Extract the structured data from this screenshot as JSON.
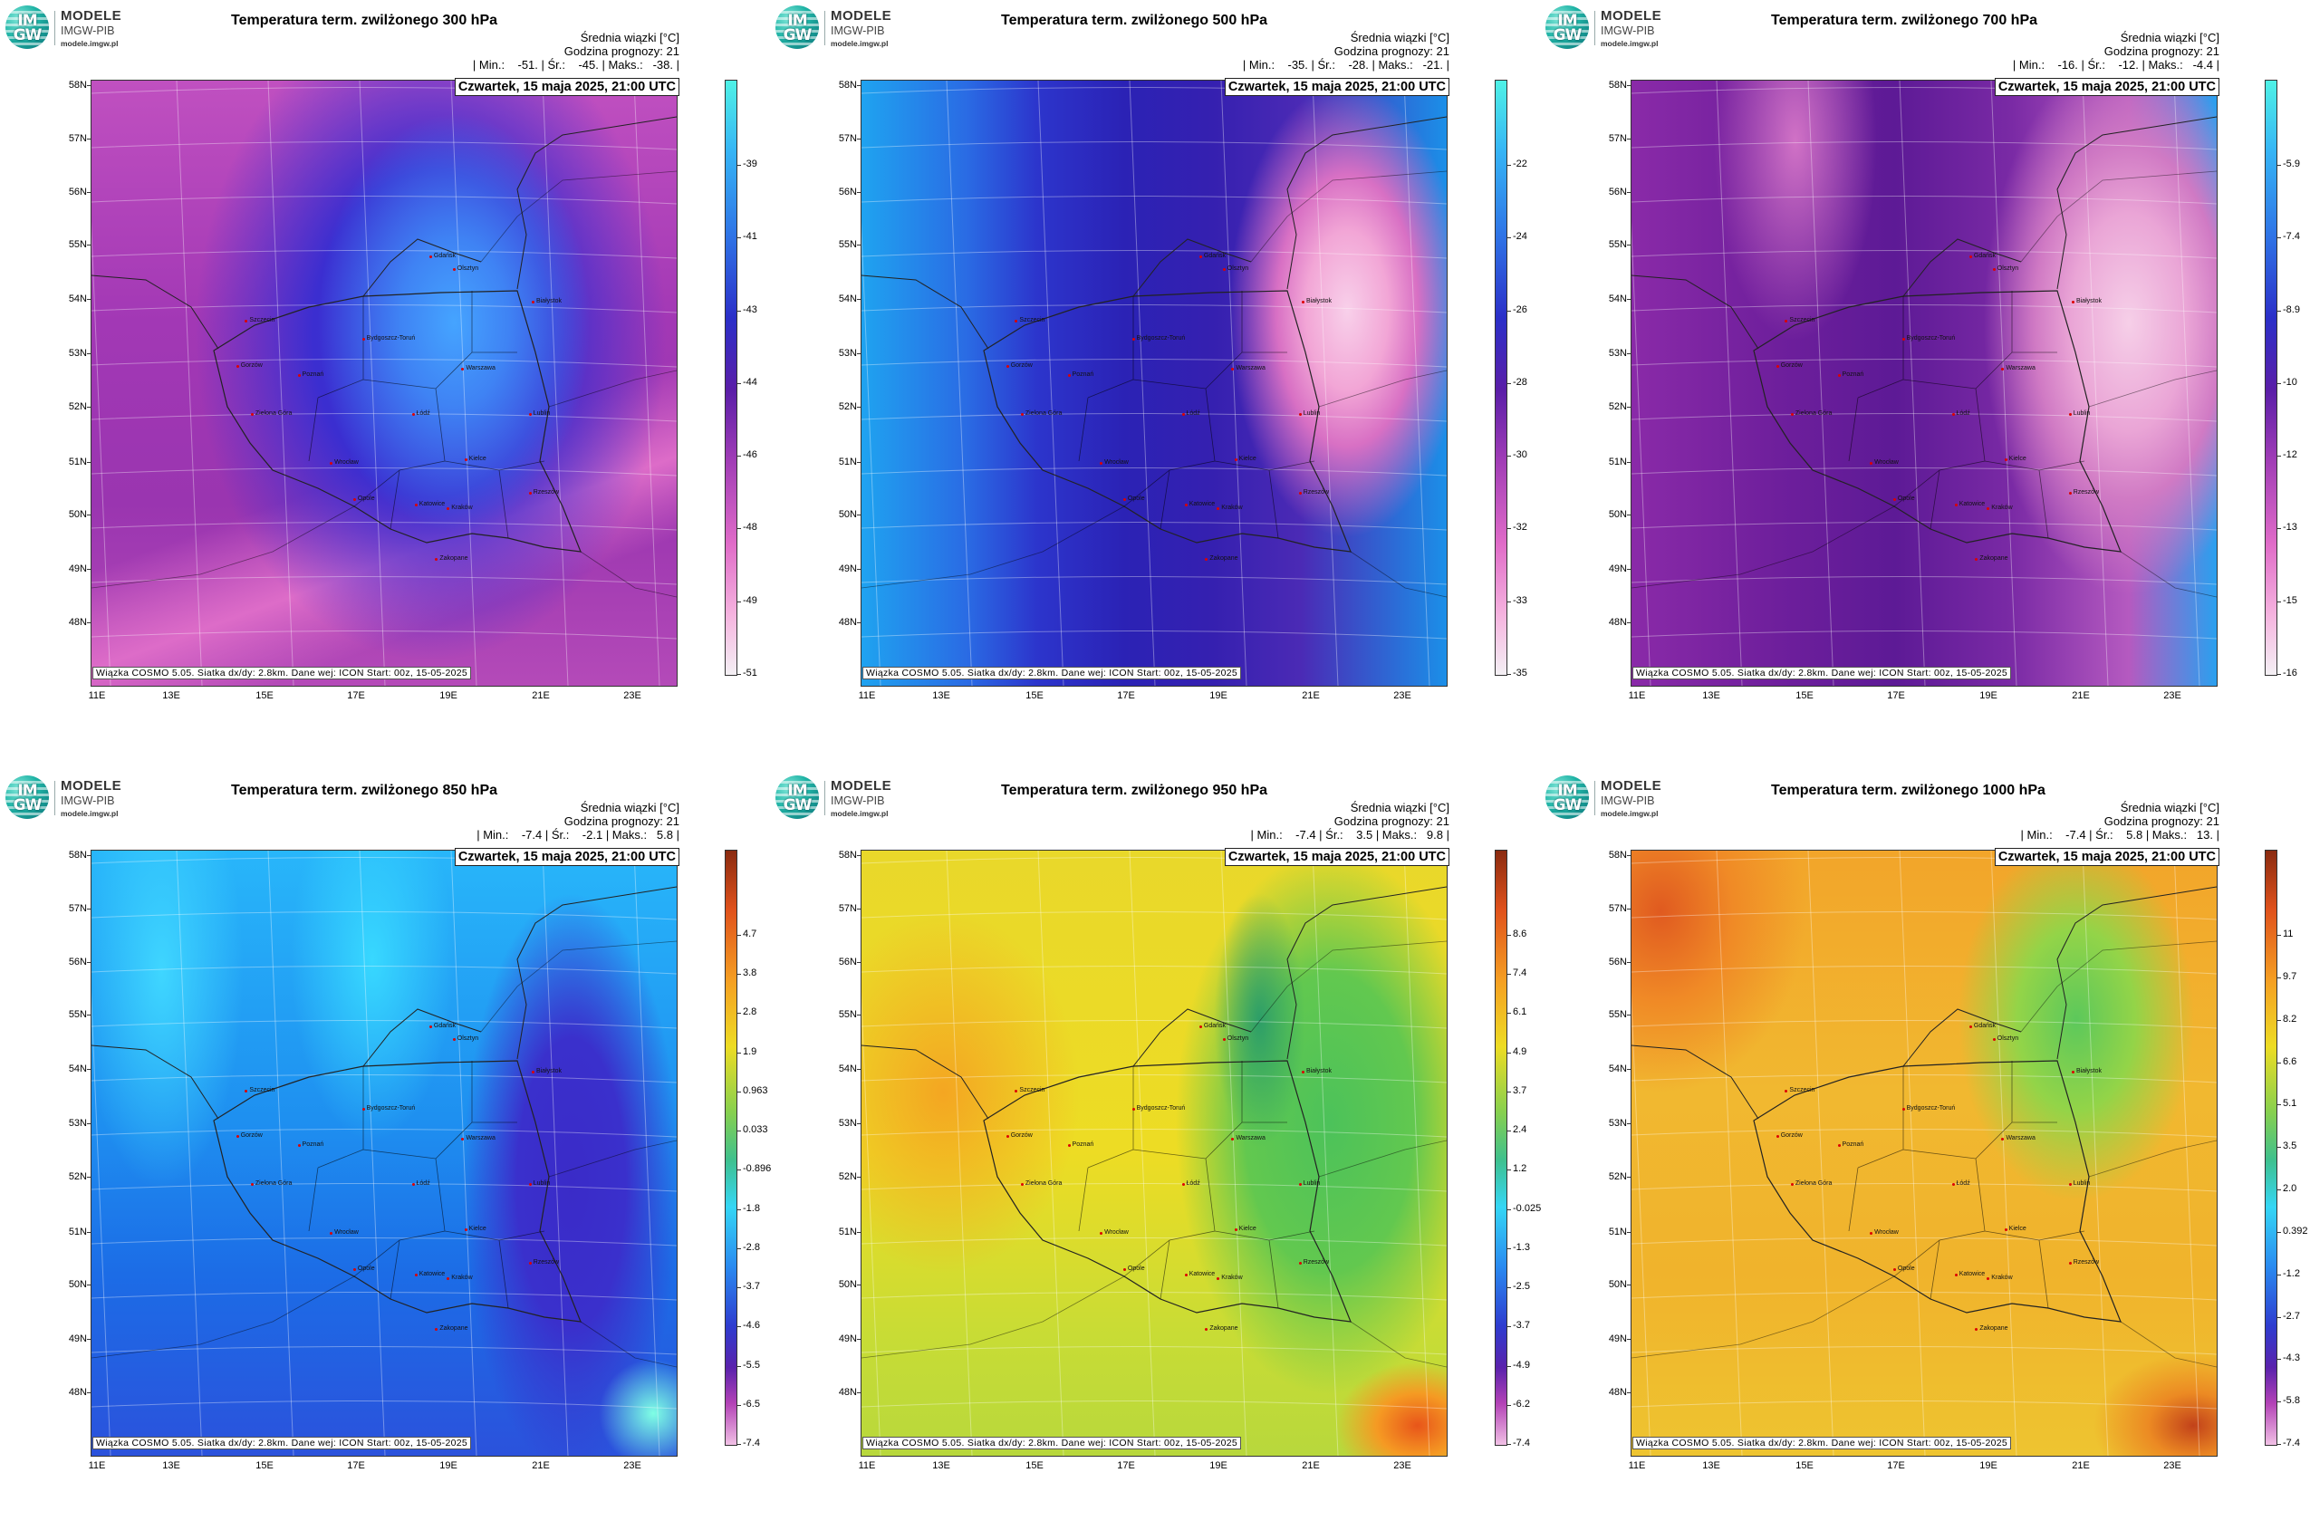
{
  "logo": {
    "line1": "MODELE",
    "line2": "IMGW-PIB",
    "line3": "modele.imgw.pl",
    "badge_top": "IM",
    "badge_bottom": "GW"
  },
  "common": {
    "stat_header": "Średnia wiązki [°C]",
    "forecast_hour": "Godzina prognozy: 21",
    "date": "Czwartek, 15 maja 2025, 21:00 UTC",
    "footer": "Wiązka COSMO 5.05. Siatka dx/dy: 2.8km. Dane wej: ICON Start: 00z, 15-05-2025",
    "lat_labels": [
      "58N",
      "57N",
      "56N",
      "55N",
      "54N",
      "53N",
      "52N",
      "51N",
      "50N",
      "49N",
      "48N"
    ],
    "lon_labels": [
      "11E",
      "13E",
      "15E",
      "17E",
      "19E",
      "21E",
      "23E"
    ]
  },
  "cities": [
    "Gdańsk",
    "Olsztyn",
    "Szczecin",
    "Bydgoszcz-Toruń",
    "Białystok",
    "Gorzów",
    "Poznań",
    "Warszawa",
    "Zielona Góra",
    "Łódź",
    "Lublin",
    "Wrocław",
    "Opole",
    "Kielce",
    "Katowice",
    "Kraków",
    "Rzeszów",
    "Zakopane"
  ],
  "panels": [
    {
      "title": "Temperatura term. zwilżonego 300 hPa",
      "min": "-51.",
      "avg": "-45.",
      "max": "-38.",
      "colorbar": [
        "-39",
        "-41",
        "-43",
        "-44",
        "-46",
        "-48",
        "-49",
        "-51"
      ],
      "cb_scheme": "cold1",
      "chart_data": {
        "type": "heatmap",
        "variable": "wet-bulb temperature",
        "level_hPa": 300,
        "unit": "°C",
        "min": -51,
        "mean": -45,
        "max": -38
      }
    },
    {
      "title": "Temperatura term. zwilżonego 500 hPa",
      "min": "-35.",
      "avg": "-28.",
      "max": "-21.",
      "colorbar": [
        "-22",
        "-24",
        "-26",
        "-28",
        "-30",
        "-32",
        "-33",
        "-35"
      ],
      "cb_scheme": "cold1",
      "chart_data": {
        "type": "heatmap",
        "variable": "wet-bulb temperature",
        "level_hPa": 500,
        "unit": "°C",
        "min": -35,
        "mean": -28,
        "max": -21
      }
    },
    {
      "title": "Temperatura term. zwilżonego 700 hPa",
      "min": "-16.",
      "avg": "-12.",
      "max": "-4.4",
      "colorbar": [
        "-5.9",
        "-7.4",
        "-8.9",
        "-10",
        "-12",
        "-13",
        "-15",
        "-16"
      ],
      "cb_scheme": "cold1",
      "chart_data": {
        "type": "heatmap",
        "variable": "wet-bulb temperature",
        "level_hPa": 700,
        "unit": "°C",
        "min": -16,
        "mean": -12,
        "max": -4.4
      }
    },
    {
      "title": "Temperatura term. zwilżonego 850 hPa",
      "min": "-7.4",
      "avg": "-2.1",
      "max": "5.8",
      "colorbar": [
        "4.7",
        "3.8",
        "2.8",
        "1.9",
        "0.963",
        "0.033",
        "-0.896",
        "-1.8",
        "-2.8",
        "-3.7",
        "-4.6",
        "-5.5",
        "-6.5",
        "-7.4"
      ],
      "cb_scheme": "warm",
      "chart_data": {
        "type": "heatmap",
        "variable": "wet-bulb temperature",
        "level_hPa": 850,
        "unit": "°C",
        "min": -7.4,
        "mean": -2.1,
        "max": 5.8
      }
    },
    {
      "title": "Temperatura term. zwilżonego 950 hPa",
      "min": "-7.4",
      "avg": "3.5",
      "max": "9.8",
      "colorbar": [
        "8.6",
        "7.4",
        "6.1",
        "4.9",
        "3.7",
        "2.4",
        "1.2",
        "-0.025",
        "-1.3",
        "-2.5",
        "-3.7",
        "-4.9",
        "-6.2",
        "-7.4"
      ],
      "cb_scheme": "warm",
      "chart_data": {
        "type": "heatmap",
        "variable": "wet-bulb temperature",
        "level_hPa": 950,
        "unit": "°C",
        "min": -7.4,
        "mean": 3.5,
        "max": 9.8
      }
    },
    {
      "title": "Temperatura term. zwilżonego 1000 hPa",
      "min": "-7.4",
      "avg": "5.8",
      "max": "13.",
      "colorbar": [
        "11",
        "9.7",
        "8.2",
        "6.6",
        "5.1",
        "3.5",
        "2.0",
        "0.392",
        "-1.2",
        "-2.7",
        "-4.3",
        "-5.8",
        "-7.4"
      ],
      "cb_scheme": "warm",
      "chart_data": {
        "type": "heatmap",
        "variable": "wet-bulb temperature",
        "level_hPa": 1000,
        "unit": "°C",
        "min": -7.4,
        "mean": 5.8,
        "max": 13
      }
    }
  ]
}
